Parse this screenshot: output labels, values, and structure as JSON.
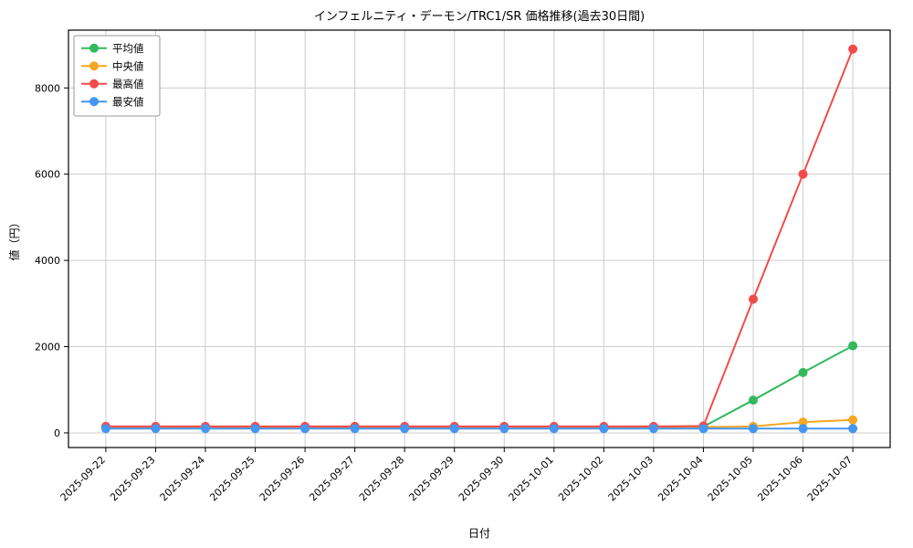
{
  "chart_data": {
    "type": "line",
    "title": "インフェルニティ・デーモン/TRC1/SR 価格推移(過去30日間)",
    "xlabel": "日付",
    "ylabel": "値（円）",
    "categories": [
      "2025-09-22",
      "2025-09-23",
      "2025-09-24",
      "2025-09-25",
      "2025-09-26",
      "2025-09-27",
      "2025-09-28",
      "2025-09-29",
      "2025-09-30",
      "2025-10-01",
      "2025-10-02",
      "2025-10-03",
      "2025-10-04",
      "2025-10-05",
      "2025-10-06",
      "2025-10-07"
    ],
    "series": [
      {
        "name": "平均値",
        "color": "#33b95c",
        "values": [
          130,
          130,
          130,
          130,
          130,
          130,
          130,
          130,
          130,
          130,
          130,
          130,
          145,
          760,
          1400,
          2020
        ]
      },
      {
        "name": "中央値",
        "color": "#f6a623",
        "values": [
          130,
          130,
          130,
          130,
          130,
          130,
          130,
          130,
          130,
          130,
          130,
          130,
          135,
          150,
          250,
          300
        ]
      },
      {
        "name": "最高値",
        "color": "#f24b4b",
        "values": [
          150,
          150,
          150,
          150,
          150,
          150,
          150,
          150,
          150,
          150,
          150,
          150,
          160,
          3100,
          6000,
          8900
        ]
      },
      {
        "name": "最安値",
        "color": "#4496f0",
        "values": [
          100,
          100,
          100,
          100,
          100,
          100,
          100,
          100,
          100,
          100,
          100,
          100,
          100,
          100,
          100,
          100
        ]
      }
    ],
    "yticks": [
      0,
      2000,
      4000,
      6000,
      8000
    ],
    "ylim": [
      -340,
      9340
    ],
    "grid": true,
    "grid_color": "#cccccc",
    "legend_position": "upper left",
    "frame_color": "#000000"
  }
}
